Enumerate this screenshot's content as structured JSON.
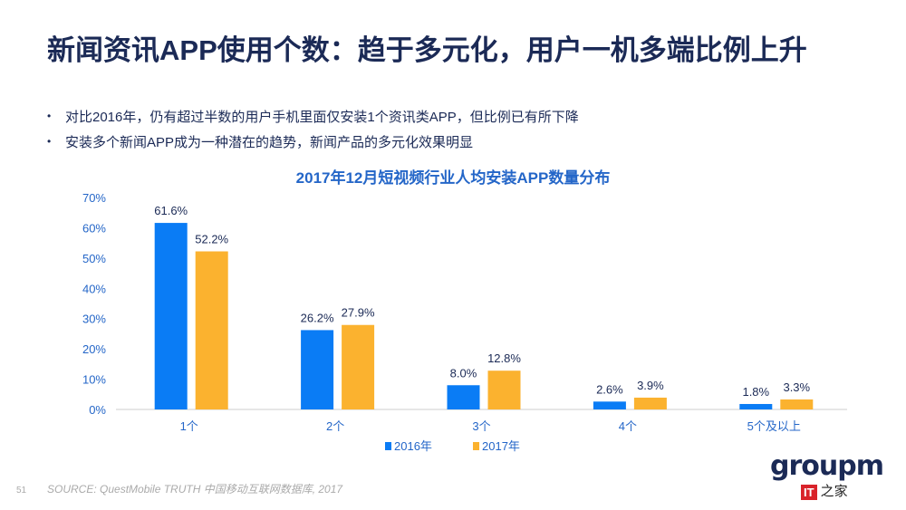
{
  "title": "新闻资讯APP使用个数：趋于多元化，用户一机多端比例上升",
  "bullets": [
    "对比2016年，仍有超过半数的用户手机里面仅安装1个资讯类APP，但比例已有所下降",
    "安装多个新闻APP成为一种潜在的趋势，新闻产品的多元化效果明显"
  ],
  "footer": {
    "page": "51",
    "source": "SOURCE: QuestMobile TRUTH 中国移动互联网数据库, 2017"
  },
  "logo": {
    "text": "groupm",
    "sub_badge": "IT",
    "sub_text": "之家"
  },
  "colors": {
    "s2016": "#0a7cf5",
    "s2017": "#fbb22f",
    "title": "#1b2a56",
    "chart_title": "#2466c8"
  },
  "chart_data": {
    "type": "bar",
    "title": "2017年12月短视频行业人均安装APP数量分布",
    "categories": [
      "1个",
      "2个",
      "3个",
      "4个",
      "5个及以上"
    ],
    "series": [
      {
        "name": "2016年",
        "values": [
          61.6,
          26.2,
          8.0,
          2.6,
          1.8
        ]
      },
      {
        "name": "2017年",
        "values": [
          52.2,
          27.9,
          12.8,
          3.9,
          3.3
        ]
      }
    ],
    "ylim": [
      0,
      70
    ],
    "yticks": [
      "0%",
      "10%",
      "20%",
      "30%",
      "40%",
      "50%",
      "60%",
      "70%"
    ],
    "data_labels": [
      [
        "61.6%",
        "26.2%",
        "8.0%",
        "2.6%",
        "1.8%"
      ],
      [
        "52.2%",
        "27.9%",
        "12.8%",
        "3.9%",
        "3.3%"
      ]
    ],
    "legend": "bottom",
    "grid": false
  }
}
